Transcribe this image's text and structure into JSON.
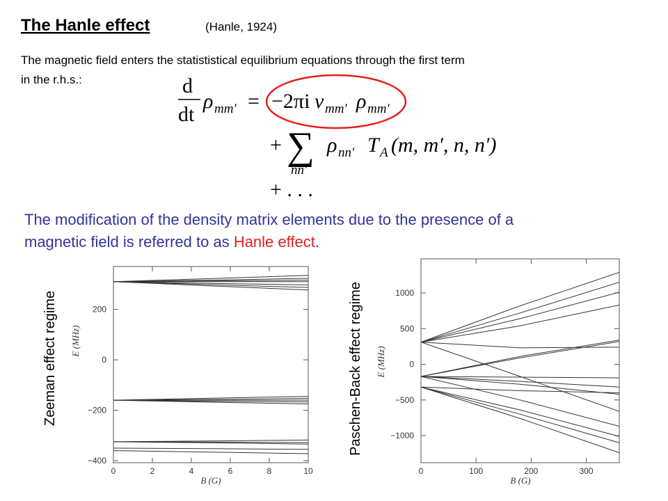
{
  "header": {
    "title": "The Hanle effect",
    "citation": "(Hanle, 1924)"
  },
  "intro": [
    "The magnetic field enters the statististical equilibrium equations through the first term",
    "in the r.h.s.:"
  ],
  "equation": {
    "d": "d",
    "dt": "dt",
    "rho": "ρ",
    "sub_mm": "mm′",
    "eq": "=",
    "term1": "−2πi",
    "nu": "ν",
    "plus": "+",
    "sum": "∑",
    "sub_nn": "nn′",
    "T": "T",
    "sub_A": "A",
    "args": "(m, m′, n, n′)",
    "dots": "+ . . ."
  },
  "statement": {
    "line1": "The modification of the density matrix elements due to the presence of a",
    "line2": "magnetic field is referred to as ",
    "highlight": "Hanle effect",
    "end": "."
  },
  "figures": [
    {
      "type": "line",
      "side_label": "Zeeman effect regime",
      "ylabel": "E (MHz)",
      "xlabel": "B (G)",
      "xlim": [
        0,
        10
      ],
      "ylim": [
        -408,
        370
      ],
      "xticks": [
        0,
        2,
        4,
        6,
        8,
        10
      ],
      "yticks": [
        {
          "value": -400,
          "label": "−400"
        },
        {
          "value": -200,
          "label": "−200"
        },
        0,
        200
      ],
      "color": "#333333",
      "x": [
        0,
        5,
        10
      ],
      "series": [
        {
          "values": [
            310,
            322,
            335
          ]
        },
        {
          "values": [
            310,
            316,
            323
          ]
        },
        {
          "values": [
            310,
            313,
            316
          ]
        },
        {
          "values": [
            310,
            310,
            310
          ]
        },
        {
          "values": [
            310,
            303,
            297
          ]
        },
        {
          "values": [
            310,
            298,
            287
          ]
        },
        {
          "values": [
            310,
            293,
            277
          ]
        },
        {
          "values": [
            -160,
            -152,
            -145
          ]
        },
        {
          "values": [
            -160,
            -157,
            -153
          ]
        },
        {
          "values": [
            -160,
            -160,
            -160
          ]
        },
        {
          "values": [
            -160,
            -164,
            -167
          ]
        },
        {
          "values": [
            -160,
            -168,
            -175
          ]
        },
        {
          "values": [
            -325,
            -322,
            -318
          ]
        },
        {
          "values": [
            -325,
            -326,
            -328
          ]
        },
        {
          "values": [
            -325,
            -329,
            -334
          ]
        },
        {
          "values": [
            -350,
            -352,
            -355
          ]
        },
        {
          "values": [
            -360,
            -366,
            -372
          ]
        }
      ]
    },
    {
      "type": "line",
      "side_label": "Paschen-Back effect regime",
      "ylabel": "E (MHz)",
      "xlabel": "B (G)",
      "xlim": [
        0,
        360
      ],
      "ylim": [
        -1380,
        1478
      ],
      "xticks": [
        0,
        100,
        200,
        300
      ],
      "yticks": [
        {
          "value": -1000,
          "label": "−1000"
        },
        {
          "value": -500,
          "label": "−500"
        },
        0,
        500,
        1000
      ],
      "color": "#333333",
      "x": [
        0,
        180,
        360
      ],
      "series": [
        {
          "values": [
            310,
            820,
            1290
          ]
        },
        {
          "values": [
            310,
            720,
            1150
          ]
        },
        {
          "values": [
            310,
            640,
            1010
          ]
        },
        {
          "values": [
            310,
            540,
            830
          ]
        },
        {
          "values": [
            310,
            230,
            240
          ]
        },
        {
          "values": [
            310,
            -170,
            -660
          ]
        },
        {
          "values": [
            -170,
            110,
            340
          ]
        },
        {
          "values": [
            -170,
            90,
            320
          ]
        },
        {
          "values": [
            -170,
            -180,
            -190
          ]
        },
        {
          "values": [
            -170,
            -240,
            -320
          ]
        },
        {
          "values": [
            -170,
            -280,
            -420
          ]
        },
        {
          "values": [
            -170,
            -500,
            -870
          ]
        },
        {
          "values": [
            -320,
            -370,
            -400
          ]
        },
        {
          "values": [
            -320,
            -640,
            -1010
          ]
        },
        {
          "values": [
            -320,
            -700,
            -1100
          ]
        },
        {
          "values": [
            -320,
            -760,
            -1240
          ]
        }
      ]
    }
  ]
}
